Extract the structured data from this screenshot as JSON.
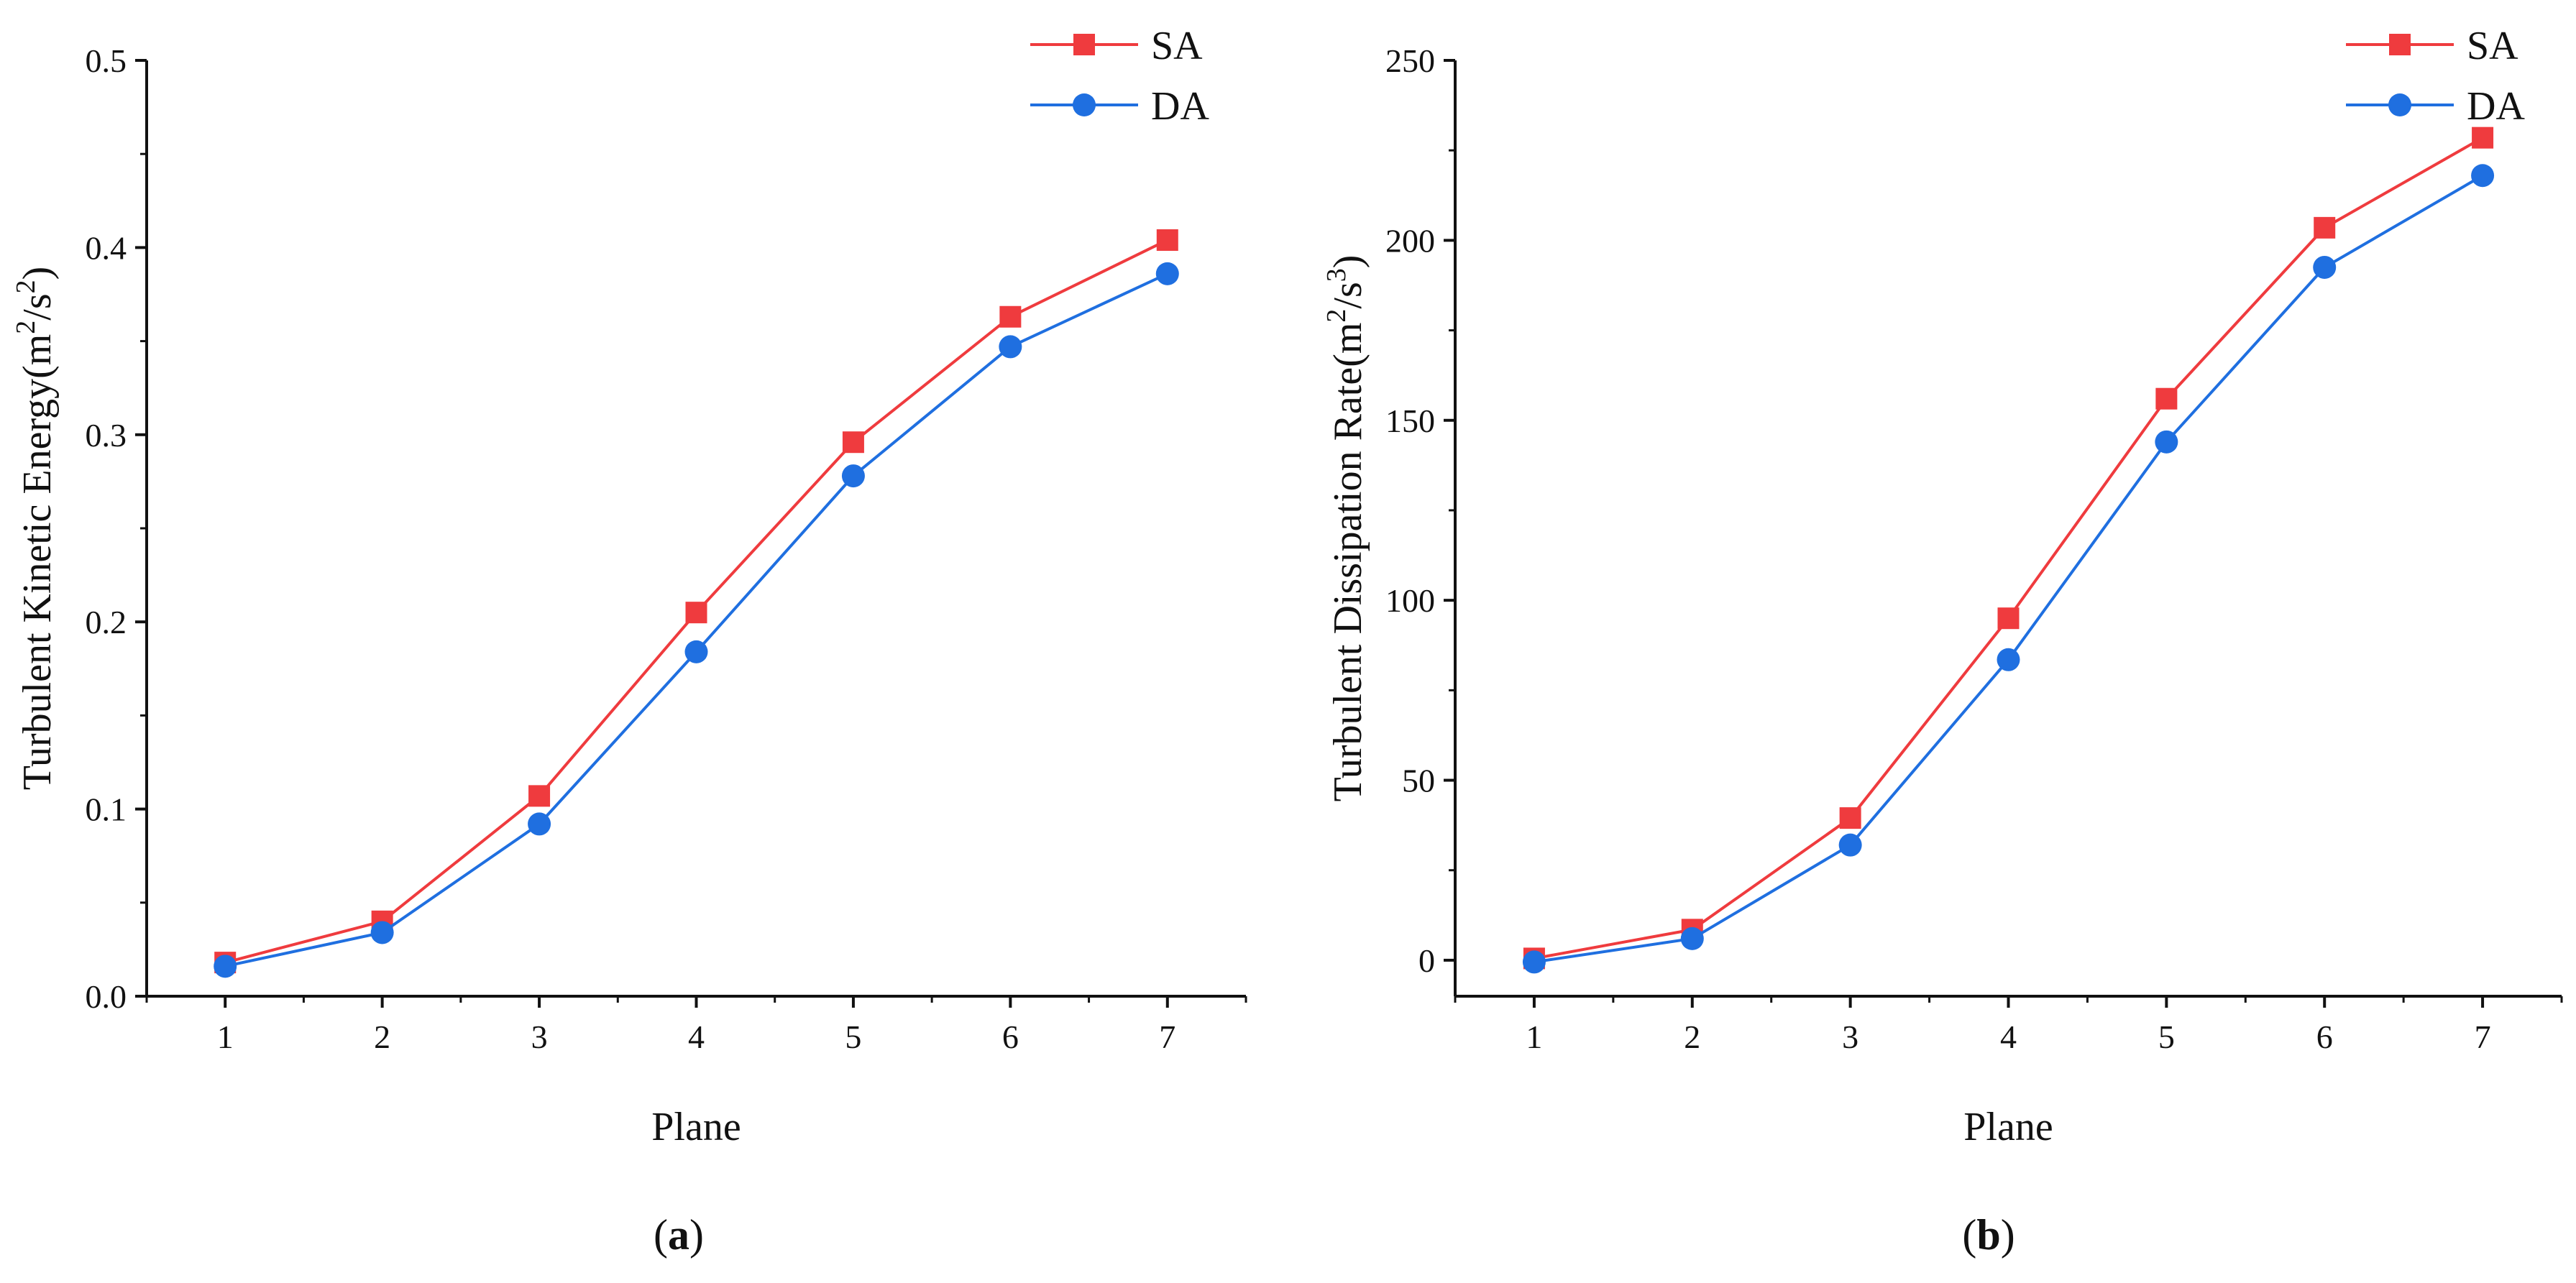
{
  "chart_data": [
    {
      "id": "a",
      "type": "line",
      "panel_label": {
        "open": "(",
        "letter": "a",
        "close": ")"
      },
      "xlabel": "Plane",
      "ylabel": {
        "text": "Turbulent Kinetic Energy(m",
        "sup1": "2",
        "mid": "/s",
        "sup2": "2",
        "close": ")"
      },
      "x": [
        1,
        2,
        3,
        4,
        5,
        6,
        7
      ],
      "xlim": [
        0.5,
        7.5
      ],
      "ylim": [
        0,
        0.5
      ],
      "yticks": [
        0.0,
        0.1,
        0.2,
        0.3,
        0.4,
        0.5
      ],
      "ytick_labels": [
        "0.0",
        "0.1",
        "0.2",
        "0.3",
        "0.4",
        "0.5"
      ],
      "xtick_labels": [
        "1",
        "2",
        "3",
        "4",
        "5",
        "6",
        "7"
      ],
      "legend_position": "top-right",
      "series": [
        {
          "name": "SA",
          "marker": "square",
          "color": "#ef3b3e",
          "values": [
            0.018,
            0.04,
            0.107,
            0.205,
            0.296,
            0.363,
            0.404
          ]
        },
        {
          "name": "DA",
          "marker": "circle",
          "color": "#1f6fe0",
          "values": [
            0.016,
            0.034,
            0.092,
            0.184,
            0.278,
            0.347,
            0.386
          ]
        }
      ]
    },
    {
      "id": "b",
      "type": "line",
      "panel_label": {
        "open": "(",
        "letter": "b",
        "close": ")"
      },
      "xlabel": "Plane",
      "ylabel": {
        "text": "Turbulent Dissipation Rate(m",
        "sup1": "2",
        "mid": "/s",
        "sup2": "3",
        "close": ")"
      },
      "x": [
        1,
        2,
        3,
        4,
        5,
        6,
        7
      ],
      "xlim": [
        0.5,
        7.5
      ],
      "ylim": [
        -10,
        250
      ],
      "yticks": [
        0,
        50,
        100,
        150,
        200,
        250
      ],
      "ytick_labels": [
        "0",
        "50",
        "100",
        "150",
        "200",
        "250"
      ],
      "xtick_labels": [
        "1",
        "2",
        "3",
        "4",
        "5",
        "6",
        "7"
      ],
      "legend_position": "top-right",
      "series": [
        {
          "name": "SA",
          "marker": "square",
          "color": "#ef3b3e",
          "values": [
            0.5,
            8.5,
            39.5,
            95.0,
            156.0,
            203.5,
            228.5
          ]
        },
        {
          "name": "DA",
          "marker": "circle",
          "color": "#1f6fe0",
          "values": [
            -0.5,
            6.0,
            32.0,
            83.5,
            144.0,
            192.5,
            218.0
          ]
        }
      ]
    }
  ]
}
